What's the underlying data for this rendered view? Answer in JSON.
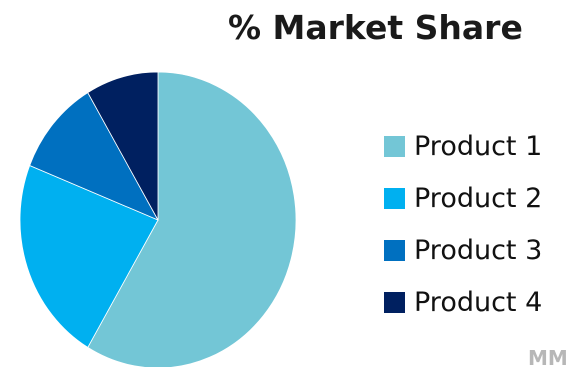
{
  "chart_data": {
    "type": "pie",
    "title": "% Market Share",
    "legend_position": "right",
    "labels": [
      "Product 1",
      "Product 2",
      "Product 3",
      "Product 4"
    ],
    "values": [
      58.5,
      22.5,
      10.5,
      8.5
    ],
    "colors": [
      "#73c6d6",
      "#00b0f0",
      "#0070c0",
      "#002060"
    ]
  },
  "watermark_text": "MM"
}
